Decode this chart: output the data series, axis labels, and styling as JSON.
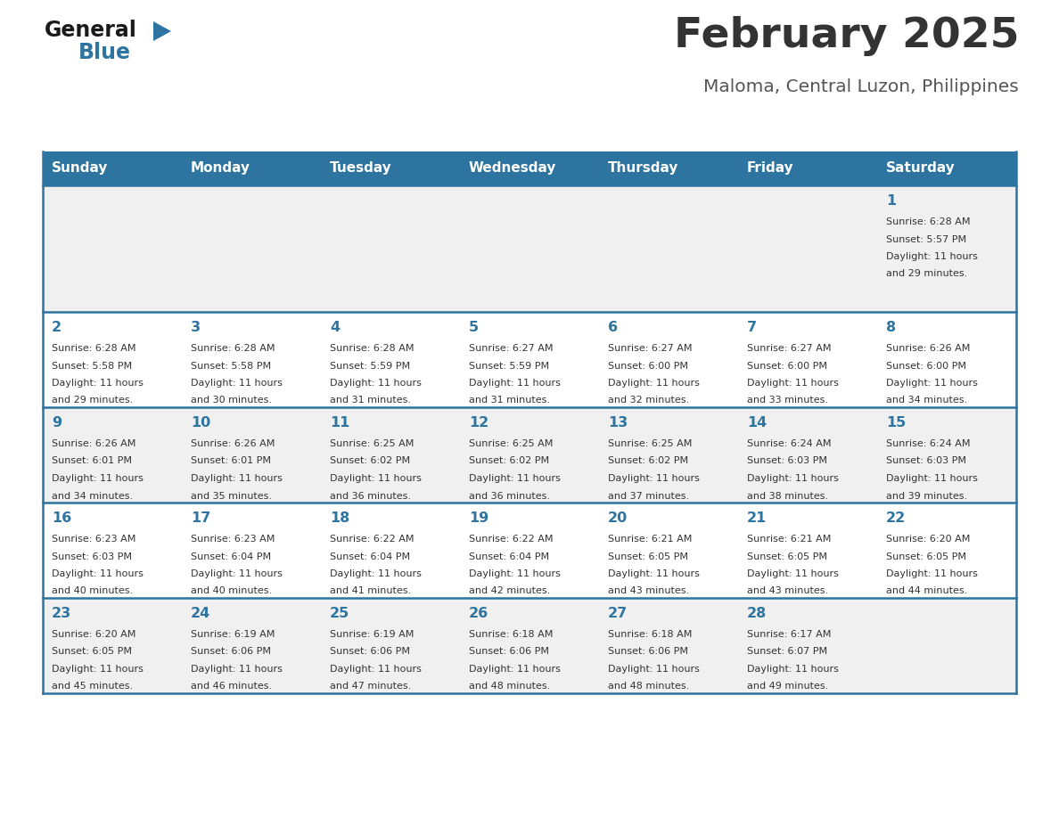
{
  "title": "February 2025",
  "subtitle": "Maloma, Central Luzon, Philippines",
  "header_bg": "#2E74A0",
  "header_text": "#FFFFFF",
  "day_names": [
    "Sunday",
    "Monday",
    "Tuesday",
    "Wednesday",
    "Thursday",
    "Friday",
    "Saturday"
  ],
  "row_bg_odd": "#F0F0F0",
  "row_bg_even": "#FFFFFF",
  "cell_border": "#2E74A0",
  "title_color": "#333333",
  "subtitle_color": "#555555",
  "day_number_color": "#2E74A0",
  "info_color": "#333333",
  "logo_general_color": "#1a1a1a",
  "logo_blue_color": "#2E74A0",
  "calendar_data": [
    [
      null,
      null,
      null,
      null,
      null,
      null,
      1
    ],
    [
      2,
      3,
      4,
      5,
      6,
      7,
      8
    ],
    [
      9,
      10,
      11,
      12,
      13,
      14,
      15
    ],
    [
      16,
      17,
      18,
      19,
      20,
      21,
      22
    ],
    [
      23,
      24,
      25,
      26,
      27,
      28,
      null
    ]
  ],
  "sunrise": {
    "1": "6:28 AM",
    "2": "6:28 AM",
    "3": "6:28 AM",
    "4": "6:28 AM",
    "5": "6:27 AM",
    "6": "6:27 AM",
    "7": "6:27 AM",
    "8": "6:26 AM",
    "9": "6:26 AM",
    "10": "6:26 AM",
    "11": "6:25 AM",
    "12": "6:25 AM",
    "13": "6:25 AM",
    "14": "6:24 AM",
    "15": "6:24 AM",
    "16": "6:23 AM",
    "17": "6:23 AM",
    "18": "6:22 AM",
    "19": "6:22 AM",
    "20": "6:21 AM",
    "21": "6:21 AM",
    "22": "6:20 AM",
    "23": "6:20 AM",
    "24": "6:19 AM",
    "25": "6:19 AM",
    "26": "6:18 AM",
    "27": "6:18 AM",
    "28": "6:17 AM"
  },
  "sunset": {
    "1": "5:57 PM",
    "2": "5:58 PM",
    "3": "5:58 PM",
    "4": "5:59 PM",
    "5": "5:59 PM",
    "6": "6:00 PM",
    "7": "6:00 PM",
    "8": "6:00 PM",
    "9": "6:01 PM",
    "10": "6:01 PM",
    "11": "6:02 PM",
    "12": "6:02 PM",
    "13": "6:02 PM",
    "14": "6:03 PM",
    "15": "6:03 PM",
    "16": "6:03 PM",
    "17": "6:04 PM",
    "18": "6:04 PM",
    "19": "6:04 PM",
    "20": "6:05 PM",
    "21": "6:05 PM",
    "22": "6:05 PM",
    "23": "6:05 PM",
    "24": "6:06 PM",
    "25": "6:06 PM",
    "26": "6:06 PM",
    "27": "6:06 PM",
    "28": "6:07 PM"
  },
  "daylight": {
    "1": "11 hours and 29 minutes.",
    "2": "11 hours and 29 minutes.",
    "3": "11 hours and 30 minutes.",
    "4": "11 hours and 31 minutes.",
    "5": "11 hours and 31 minutes.",
    "6": "11 hours and 32 minutes.",
    "7": "11 hours and 33 minutes.",
    "8": "11 hours and 34 minutes.",
    "9": "11 hours and 34 minutes.",
    "10": "11 hours and 35 minutes.",
    "11": "11 hours and 36 minutes.",
    "12": "11 hours and 36 minutes.",
    "13": "11 hours and 37 minutes.",
    "14": "11 hours and 38 minutes.",
    "15": "11 hours and 39 minutes.",
    "16": "11 hours and 40 minutes.",
    "17": "11 hours and 40 minutes.",
    "18": "11 hours and 41 minutes.",
    "19": "11 hours and 42 minutes.",
    "20": "11 hours and 43 minutes.",
    "21": "11 hours and 43 minutes.",
    "22": "11 hours and 44 minutes.",
    "23": "11 hours and 45 minutes.",
    "24": "11 hours and 46 minutes.",
    "25": "11 hours and 47 minutes.",
    "26": "11 hours and 48 minutes.",
    "27": "11 hours and 48 minutes.",
    "28": "11 hours and 49 minutes."
  },
  "fig_width": 11.88,
  "fig_height": 9.18,
  "dpi": 100
}
